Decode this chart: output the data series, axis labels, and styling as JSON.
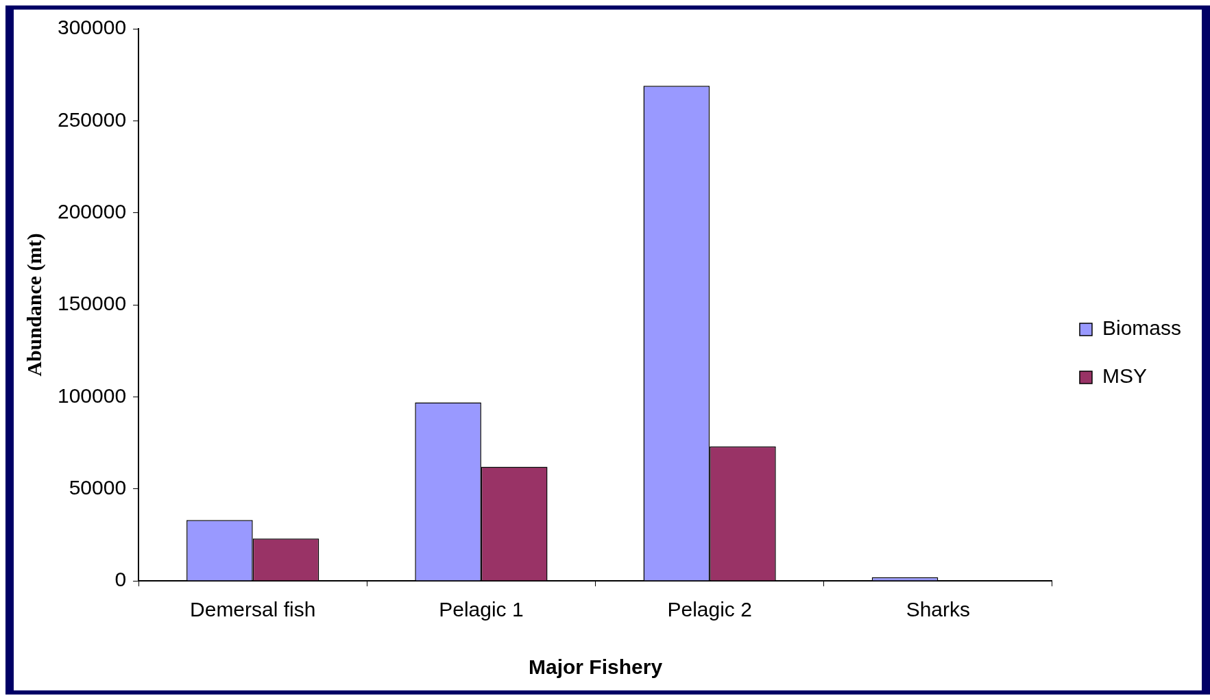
{
  "chart_data": {
    "type": "bar",
    "xlabel": "Major Fishery",
    "ylabel": "Abundance (mt)",
    "categories": [
      "Demersal fish",
      "Pelagic 1",
      "Pelagic 2",
      "Sharks"
    ],
    "series": [
      {
        "name": "Biomass",
        "color": "#9999ff",
        "values": [
          33000,
          97000,
          269000,
          2000
        ]
      },
      {
        "name": "MSY",
        "color": "#993366",
        "values": [
          23000,
          62000,
          73000,
          null
        ]
      }
    ],
    "ylim": [
      0,
      300000
    ],
    "yticks": [
      0,
      50000,
      100000,
      150000,
      200000,
      250000,
      300000
    ],
    "grid": false,
    "legend": "right"
  }
}
